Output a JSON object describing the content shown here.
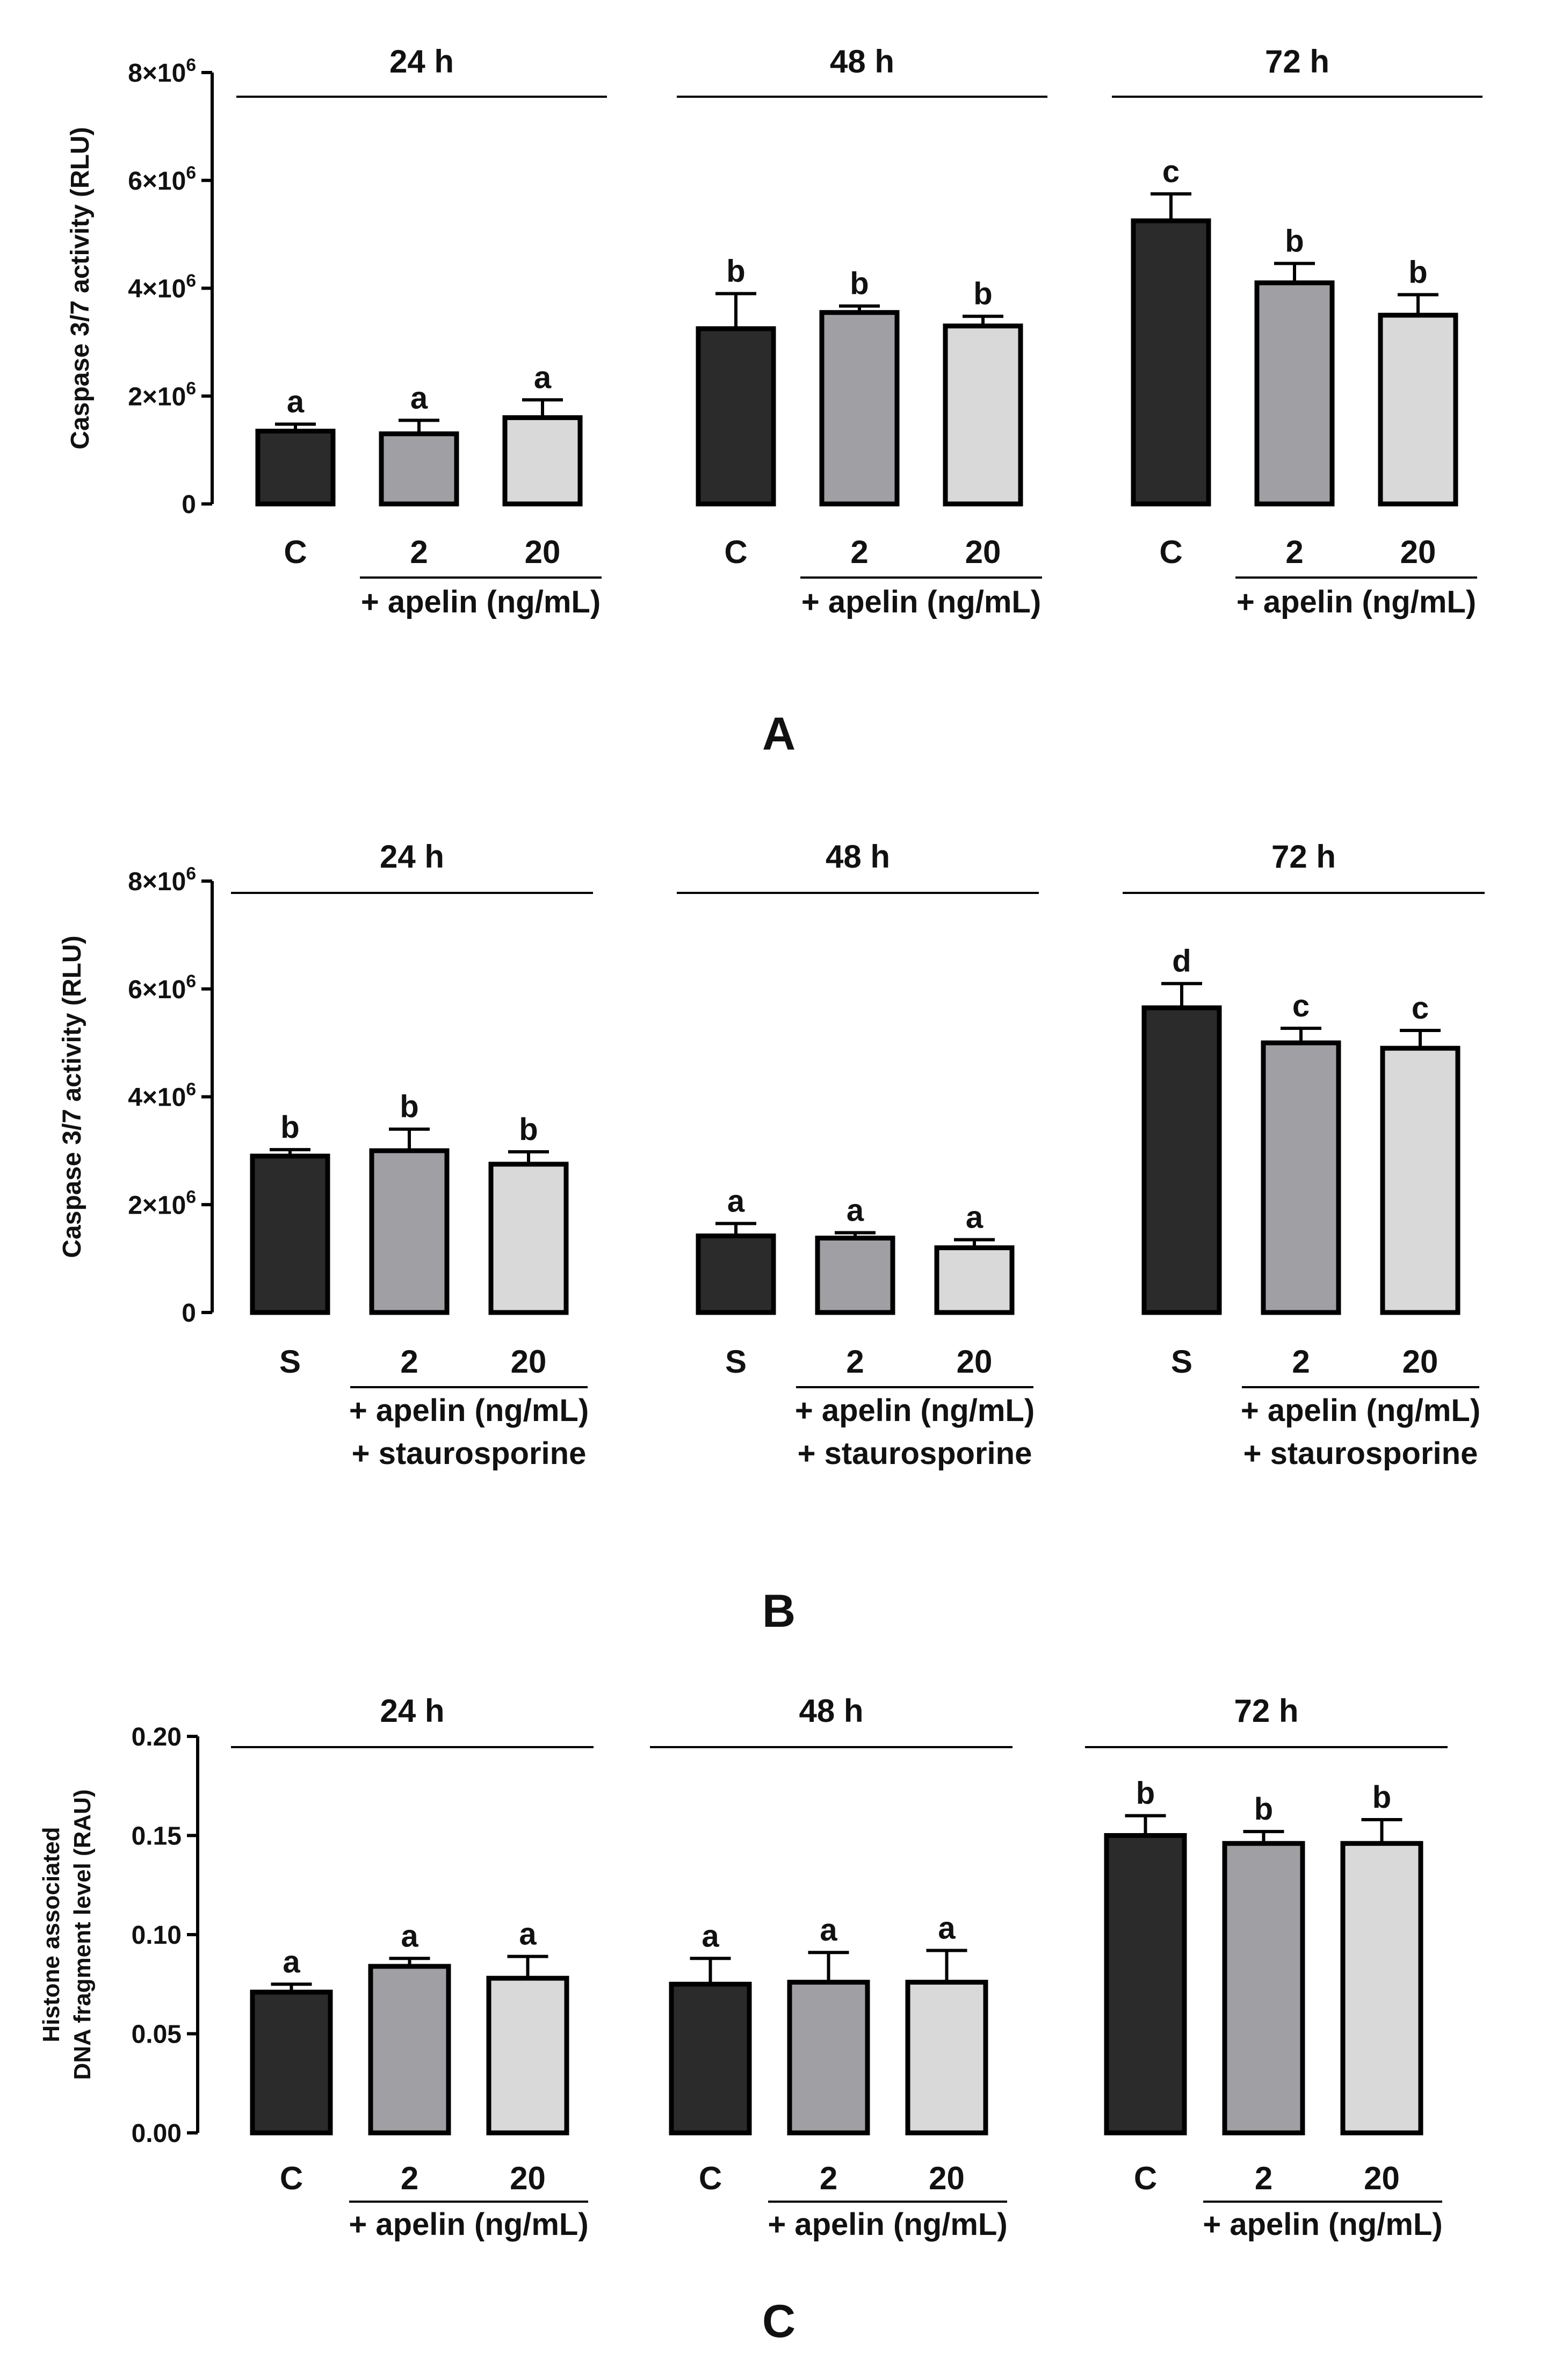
{
  "colors": {
    "dark": "#2b2b2b",
    "mid": "#a09fa3",
    "light": "#d9d9d9",
    "stroke": "#000000"
  },
  "chart_data": [
    {
      "panel_label": "A",
      "type": "bar",
      "ylabel": "Caspase 3/7 activity (RLU)",
      "ylim": [
        0,
        8000000
      ],
      "yticks": [
        0,
        2000000,
        4000000,
        6000000,
        8000000
      ],
      "ytick_labels": [
        "0",
        "2×10⁶",
        "4×10⁶",
        "6×10⁶",
        "8×10⁶"
      ],
      "groups": [
        {
          "title": "24 h",
          "categories": [
            "C",
            "2",
            "20"
          ],
          "treatment_label": [
            "+ apelin (ng/mL)"
          ],
          "values": [
            1350000,
            1300000,
            1600000
          ],
          "errors": [
            130000,
            250000,
            330000
          ],
          "letters": [
            "a",
            "a",
            "a"
          ]
        },
        {
          "title": "48 h",
          "categories": [
            "C",
            "2",
            "20"
          ],
          "treatment_label": [
            "+ apelin (ng/mL)"
          ],
          "values": [
            3250000,
            3550000,
            3300000
          ],
          "errors": [
            650000,
            120000,
            180000
          ],
          "letters": [
            "b",
            "b",
            "b"
          ]
        },
        {
          "title": "72 h",
          "categories": [
            "C",
            "2",
            "20"
          ],
          "treatment_label": [
            "+ apelin (ng/mL)"
          ],
          "values": [
            5250000,
            4100000,
            3500000
          ],
          "errors": [
            500000,
            360000,
            380000
          ],
          "letters": [
            "c",
            "b",
            "b"
          ]
        }
      ]
    },
    {
      "panel_label": "B",
      "type": "bar",
      "ylabel": "Caspase 3/7 activity (RLU)",
      "ylim": [
        0,
        8000000
      ],
      "yticks": [
        0,
        2000000,
        4000000,
        6000000,
        8000000
      ],
      "ytick_labels": [
        "0",
        "2×10⁶",
        "4×10⁶",
        "6×10⁶",
        "8×10⁶"
      ],
      "groups": [
        {
          "title": "24 h",
          "categories": [
            "S",
            "2",
            "20"
          ],
          "treatment_label": [
            "+ apelin (ng/mL)",
            "+ staurosporine"
          ],
          "values": [
            2900000,
            3000000,
            2750000
          ],
          "errors": [
            120000,
            400000,
            230000
          ],
          "letters": [
            "b",
            "b",
            "b"
          ]
        },
        {
          "title": "48 h",
          "categories": [
            "S",
            "2",
            "20"
          ],
          "treatment_label": [
            "+ apelin (ng/mL)",
            "+ staurosporine"
          ],
          "values": [
            1420000,
            1380000,
            1200000
          ],
          "errors": [
            230000,
            100000,
            150000
          ],
          "letters": [
            "a",
            "a",
            "a"
          ]
        },
        {
          "title": "72 h",
          "categories": [
            "S",
            "2",
            "20"
          ],
          "treatment_label": [
            "+ apelin (ng/mL)",
            "+ staurosporine"
          ],
          "values": [
            5650000,
            5000000,
            4900000
          ],
          "errors": [
            450000,
            270000,
            330000
          ],
          "letters": [
            "d",
            "c",
            "c"
          ]
        }
      ]
    },
    {
      "panel_label": "C",
      "type": "bar",
      "ylabel": [
        "Histone associated",
        "DNA fragment  level (RAU)"
      ],
      "ylim": [
        0,
        0.2
      ],
      "yticks": [
        0,
        0.05,
        0.1,
        0.15,
        0.2
      ],
      "ytick_labels": [
        "0.00",
        "0.05",
        "0.10",
        "0.15",
        "0.20"
      ],
      "groups": [
        {
          "title": "24 h",
          "categories": [
            "C",
            "2",
            "20"
          ],
          "treatment_label": [
            "+ apelin (ng/mL)"
          ],
          "values": [
            0.071,
            0.084,
            0.078
          ],
          "errors": [
            0.004,
            0.004,
            0.011
          ],
          "letters": [
            "a",
            "a",
            "a"
          ]
        },
        {
          "title": "48 h",
          "categories": [
            "C",
            "2",
            "20"
          ],
          "treatment_label": [
            "+ apelin (ng/mL)"
          ],
          "values": [
            0.075,
            0.076,
            0.076
          ],
          "errors": [
            0.013,
            0.015,
            0.016
          ],
          "letters": [
            "a",
            "a",
            "a"
          ]
        },
        {
          "title": "72 h",
          "categories": [
            "C",
            "2",
            "20"
          ],
          "treatment_label": [
            "+ apelin (ng/mL)"
          ],
          "values": [
            0.15,
            0.146,
            0.146
          ],
          "errors": [
            0.01,
            0.006,
            0.012
          ],
          "letters": [
            "b",
            "b",
            "b"
          ]
        }
      ]
    }
  ]
}
